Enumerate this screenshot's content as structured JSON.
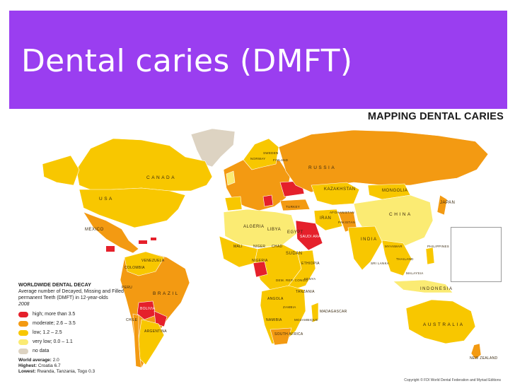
{
  "slide": {
    "title": "Dental caries (DMFT)",
    "band_color": "#9a3ef0"
  },
  "map": {
    "title": "MAPPING DENTAL CARIES",
    "colors": {
      "high": "#e5202b",
      "moderate": "#f39a12",
      "low": "#f8c700",
      "very_low": "#fbeb73",
      "no_data": "#ddd3c2"
    },
    "country_labels": {
      "canada": "CANADA",
      "usa": "USA",
      "russia": "RUSSIA",
      "china": "CHINA",
      "brazil": "BRAZIL",
      "australia": "AUSTRALIA",
      "india": "INDIA",
      "indonesia": "INDONESIA",
      "mexico": "MEXICO",
      "kazakhstan": "KAZAKHSTAN",
      "mongolia": "MONGOLIA",
      "japan": "JAPAN",
      "algeria": "ALGERIA",
      "libya": "LIBYA",
      "egypt": "EGYPT",
      "saudi": "SAUDI ARABIA",
      "iran": "IRAN",
      "sudan": "SUDAN",
      "ethiopia": "ETHIOPIA",
      "argentina": "ARGENTINA",
      "bolivia": "BOLIVIA",
      "peru": "PERU",
      "colombia": "COLOMBIA",
      "venezuela": "VENEZUELA",
      "chile": "CHILE",
      "new_zealand": "NEW ZEALAND",
      "south_africa": "SOUTH AFRICA",
      "namibia": "NAMIBIA",
      "angola": "ANGOLA",
      "tanzania": "TANZANIA",
      "madagascar": "MADAGASCAR",
      "nigeria": "NIGERIA",
      "mali": "MALI",
      "niger": "NIGER",
      "chad": "CHAD",
      "sweden": "SWEDEN",
      "norway": "NORWAY",
      "finland": "FINLAND",
      "turkey": "TURKEY",
      "pakistan": "PAKISTAN",
      "afghanistan": "AFGHANISTAN",
      "thailand": "THAILAND",
      "myanmar": "MYANMAR",
      "malaysia": "MALAYSIA",
      "philippines": "PHILIPPINES",
      "sri_lanka": "SRI LANKA",
      "kenya": "KENYA",
      "zambia": "ZAMBIA",
      "mozambique": "MOZAMBIQUE",
      "dr_congo": "DEM. REP. CONGO"
    }
  },
  "legend": {
    "title": "WORLDWIDE DENTAL DECAY",
    "subtitle": "Average number of Decayed, Missing and Filled permanent Teeth (DMFT) in 12-year-olds",
    "year": "2008",
    "items": [
      {
        "label": "high; more than 3.5",
        "color": "#e5202b"
      },
      {
        "label": "moderate; 2.6 – 3.5",
        "color": "#f39a12"
      },
      {
        "label": "low; 1.2 – 2.5",
        "color": "#f8c700"
      },
      {
        "label": "very low; 0.0 – 1.1",
        "color": "#fbeb73"
      },
      {
        "label": "no data",
        "color": "#ddd3c2"
      }
    ]
  },
  "stats": {
    "average_label": "World average:",
    "average_value": "2.0",
    "highest_label": "Highest:",
    "highest_value": "Croatia 6.7",
    "lowest_label": "Lowest:",
    "lowest_value": "Rwanda, Tanzania, Togo 0.3"
  },
  "copyright": "Copyright © FDI World Dental Federation and Myriad Editions"
}
